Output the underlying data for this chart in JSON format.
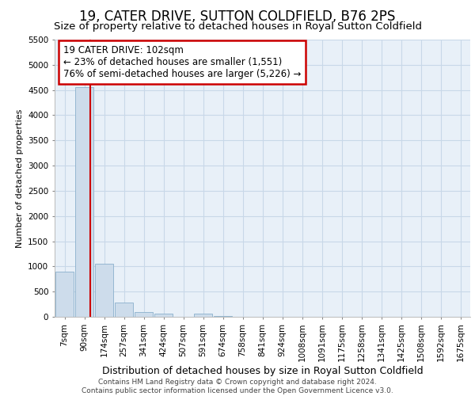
{
  "title": "19, CATER DRIVE, SUTTON COLDFIELD, B76 2PS",
  "subtitle": "Size of property relative to detached houses in Royal Sutton Coldfield",
  "xlabel": "Distribution of detached houses by size in Royal Sutton Coldfield",
  "ylabel": "Number of detached properties",
  "bins": [
    "7sqm",
    "90sqm",
    "174sqm",
    "257sqm",
    "341sqm",
    "424sqm",
    "507sqm",
    "591sqm",
    "674sqm",
    "758sqm",
    "841sqm",
    "924sqm",
    "1008sqm",
    "1091sqm",
    "1175sqm",
    "1258sqm",
    "1341sqm",
    "1425sqm",
    "1508sqm",
    "1592sqm",
    "1675sqm"
  ],
  "values": [
    900,
    4550,
    1060,
    280,
    90,
    70,
    0,
    60,
    20,
    0,
    0,
    0,
    0,
    0,
    0,
    0,
    0,
    0,
    0,
    0,
    0
  ],
  "bar_color": "#cddceb",
  "bar_edge_color": "#8ab0cc",
  "vline_x": 1.3,
  "vline_color": "#cc0000",
  "annotation_text": "19 CATER DRIVE: 102sqm\n← 23% of detached houses are smaller (1,551)\n76% of semi-detached houses are larger (5,226) →",
  "annotation_box_color": "#cc0000",
  "ylim": [
    0,
    5500
  ],
  "yticks": [
    0,
    500,
    1000,
    1500,
    2000,
    2500,
    3000,
    3500,
    4000,
    4500,
    5000,
    5500
  ],
  "grid_color": "#c8d8e8",
  "bg_color": "#e8f0f8",
  "footnote": "Contains HM Land Registry data © Crown copyright and database right 2024.\nContains public sector information licensed under the Open Government Licence v3.0.",
  "title_fontsize": 12,
  "subtitle_fontsize": 9.5,
  "xlabel_fontsize": 9,
  "ylabel_fontsize": 8,
  "tick_fontsize": 7.5,
  "annot_fontsize": 8.5,
  "footnote_fontsize": 6.5
}
